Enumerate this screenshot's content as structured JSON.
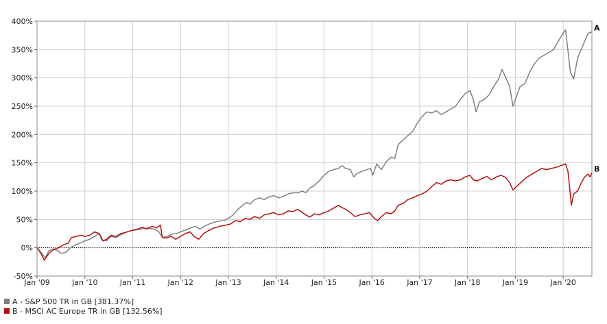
{
  "chart_data": {
    "type": "line",
    "title": "",
    "xlabel": "",
    "ylabel": "",
    "x_tick_labels": [
      "Jan '09",
      "Jan '10",
      "Jan '11",
      "Jan '12",
      "Jan '13",
      "Jan '14",
      "Jan '15",
      "Jan '16",
      "Jan '17",
      "Jan '18",
      "Jan '19",
      "Jan '20"
    ],
    "y_tick_labels": [
      "-50%",
      "0%",
      "50%",
      "100%",
      "150%",
      "200%",
      "250%",
      "300%",
      "350%",
      "400%"
    ],
    "xlim": [
      2009.0,
      2020.6
    ],
    "ylim": [
      -50,
      400
    ],
    "grid": true,
    "zero_line": "dotted",
    "legend_position": "bottom-left",
    "series": [
      {
        "id": "A",
        "name": "A - S&P 500 TR in GB [381.37%]",
        "end_label": "A",
        "color": "#7f7f7f",
        "points": [
          [
            2009.0,
            0
          ],
          [
            2009.08,
            -8
          ],
          [
            2009.17,
            -18
          ],
          [
            2009.25,
            -5
          ],
          [
            2009.35,
            -2
          ],
          [
            2009.45,
            -6
          ],
          [
            2009.5,
            -10
          ],
          [
            2009.6,
            -8
          ],
          [
            2009.7,
            0
          ],
          [
            2009.8,
            5
          ],
          [
            2009.9,
            8
          ],
          [
            2010.0,
            12
          ],
          [
            2010.1,
            15
          ],
          [
            2010.2,
            20
          ],
          [
            2010.3,
            25
          ],
          [
            2010.35,
            14
          ],
          [
            2010.45,
            12
          ],
          [
            2010.55,
            20
          ],
          [
            2010.65,
            18
          ],
          [
            2010.75,
            23
          ],
          [
            2010.85,
            27
          ],
          [
            2010.95,
            30
          ],
          [
            2011.1,
            32
          ],
          [
            2011.3,
            35
          ],
          [
            2011.45,
            33
          ],
          [
            2011.55,
            28
          ],
          [
            2011.62,
            18
          ],
          [
            2011.72,
            20
          ],
          [
            2011.82,
            24
          ],
          [
            2011.92,
            25
          ],
          [
            2012.0,
            28
          ],
          [
            2012.15,
            33
          ],
          [
            2012.3,
            38
          ],
          [
            2012.4,
            33
          ],
          [
            2012.5,
            38
          ],
          [
            2012.6,
            42
          ],
          [
            2012.7,
            45
          ],
          [
            2012.8,
            47
          ],
          [
            2012.92,
            48
          ],
          [
            2013.0,
            52
          ],
          [
            2013.1,
            58
          ],
          [
            2013.2,
            68
          ],
          [
            2013.3,
            75
          ],
          [
            2013.38,
            80
          ],
          [
            2013.45,
            77
          ],
          [
            2013.55,
            85
          ],
          [
            2013.65,
            88
          ],
          [
            2013.75,
            85
          ],
          [
            2013.85,
            90
          ],
          [
            2013.95,
            92
          ],
          [
            2014.05,
            88
          ],
          [
            2014.15,
            91
          ],
          [
            2014.25,
            95
          ],
          [
            2014.35,
            97
          ],
          [
            2014.45,
            97
          ],
          [
            2014.55,
            100
          ],
          [
            2014.62,
            97
          ],
          [
            2014.7,
            105
          ],
          [
            2014.8,
            110
          ],
          [
            2014.9,
            118
          ],
          [
            2015.0,
            128
          ],
          [
            2015.1,
            135
          ],
          [
            2015.2,
            138
          ],
          [
            2015.3,
            140
          ],
          [
            2015.38,
            145
          ],
          [
            2015.45,
            140
          ],
          [
            2015.55,
            138
          ],
          [
            2015.62,
            125
          ],
          [
            2015.7,
            132
          ],
          [
            2015.8,
            135
          ],
          [
            2015.9,
            138
          ],
          [
            2015.97,
            140
          ],
          [
            2016.02,
            128
          ],
          [
            2016.1,
            148
          ],
          [
            2016.2,
            138
          ],
          [
            2016.3,
            152
          ],
          [
            2016.4,
            160
          ],
          [
            2016.48,
            158
          ],
          [
            2016.55,
            182
          ],
          [
            2016.65,
            190
          ],
          [
            2016.75,
            198
          ],
          [
            2016.85,
            205
          ],
          [
            2016.95,
            220
          ],
          [
            2017.05,
            232
          ],
          [
            2017.15,
            240
          ],
          [
            2017.25,
            238
          ],
          [
            2017.35,
            242
          ],
          [
            2017.45,
            235
          ],
          [
            2017.55,
            240
          ],
          [
            2017.65,
            245
          ],
          [
            2017.75,
            250
          ],
          [
            2017.85,
            262
          ],
          [
            2017.95,
            272
          ],
          [
            2018.05,
            278
          ],
          [
            2018.12,
            262
          ],
          [
            2018.18,
            240
          ],
          [
            2018.25,
            258
          ],
          [
            2018.35,
            262
          ],
          [
            2018.45,
            270
          ],
          [
            2018.55,
            285
          ],
          [
            2018.65,
            298
          ],
          [
            2018.72,
            315
          ],
          [
            2018.8,
            300
          ],
          [
            2018.88,
            285
          ],
          [
            2018.95,
            250
          ],
          [
            2019.0,
            262
          ],
          [
            2019.1,
            285
          ],
          [
            2019.2,
            290
          ],
          [
            2019.3,
            310
          ],
          [
            2019.4,
            325
          ],
          [
            2019.5,
            335
          ],
          [
            2019.6,
            340
          ],
          [
            2019.7,
            345
          ],
          [
            2019.8,
            350
          ],
          [
            2019.9,
            365
          ],
          [
            2019.97,
            375
          ],
          [
            2020.05,
            385
          ],
          [
            2020.1,
            348
          ],
          [
            2020.15,
            310
          ],
          [
            2020.22,
            298
          ],
          [
            2020.3,
            335
          ],
          [
            2020.4,
            355
          ],
          [
            2020.5,
            375
          ],
          [
            2020.55,
            380
          ],
          [
            2020.6,
            381
          ]
        ]
      },
      {
        "id": "B",
        "name": "B - MSCI AC Europe TR in GB [132.56%]",
        "end_label": "B",
        "color": "#b50f0f",
        "points": [
          [
            2009.0,
            0
          ],
          [
            2009.08,
            -10
          ],
          [
            2009.15,
            -22
          ],
          [
            2009.25,
            -10
          ],
          [
            2009.35,
            -3
          ],
          [
            2009.45,
            0
          ],
          [
            2009.55,
            5
          ],
          [
            2009.65,
            8
          ],
          [
            2009.72,
            18
          ],
          [
            2009.82,
            20
          ],
          [
            2009.92,
            22
          ],
          [
            2010.0,
            20
          ],
          [
            2010.1,
            22
          ],
          [
            2010.2,
            28
          ],
          [
            2010.3,
            25
          ],
          [
            2010.38,
            12
          ],
          [
            2010.45,
            15
          ],
          [
            2010.55,
            22
          ],
          [
            2010.65,
            20
          ],
          [
            2010.75,
            25
          ],
          [
            2010.85,
            27
          ],
          [
            2010.95,
            30
          ],
          [
            2011.1,
            33
          ],
          [
            2011.2,
            36
          ],
          [
            2011.3,
            33
          ],
          [
            2011.4,
            38
          ],
          [
            2011.5,
            35
          ],
          [
            2011.58,
            40
          ],
          [
            2011.62,
            18
          ],
          [
            2011.7,
            17
          ],
          [
            2011.8,
            20
          ],
          [
            2011.9,
            15
          ],
          [
            2012.0,
            20
          ],
          [
            2012.1,
            25
          ],
          [
            2012.2,
            28
          ],
          [
            2012.28,
            20
          ],
          [
            2012.38,
            15
          ],
          [
            2012.48,
            25
          ],
          [
            2012.58,
            30
          ],
          [
            2012.7,
            35
          ],
          [
            2012.82,
            38
          ],
          [
            2012.95,
            40
          ],
          [
            2013.05,
            42
          ],
          [
            2013.15,
            48
          ],
          [
            2013.25,
            46
          ],
          [
            2013.35,
            52
          ],
          [
            2013.45,
            50
          ],
          [
            2013.55,
            55
          ],
          [
            2013.65,
            52
          ],
          [
            2013.75,
            58
          ],
          [
            2013.85,
            60
          ],
          [
            2013.95,
            62
          ],
          [
            2014.05,
            58
          ],
          [
            2014.15,
            60
          ],
          [
            2014.25,
            65
          ],
          [
            2014.35,
            64
          ],
          [
            2014.45,
            68
          ],
          [
            2014.55,
            62
          ],
          [
            2014.62,
            58
          ],
          [
            2014.7,
            54
          ],
          [
            2014.8,
            60
          ],
          [
            2014.9,
            58
          ],
          [
            2015.0,
            62
          ],
          [
            2015.1,
            65
          ],
          [
            2015.2,
            70
          ],
          [
            2015.3,
            75
          ],
          [
            2015.35,
            72
          ],
          [
            2015.45,
            68
          ],
          [
            2015.55,
            62
          ],
          [
            2015.65,
            55
          ],
          [
            2015.75,
            58
          ],
          [
            2015.85,
            60
          ],
          [
            2015.95,
            62
          ],
          [
            2016.05,
            52
          ],
          [
            2016.12,
            48
          ],
          [
            2016.2,
            55
          ],
          [
            2016.3,
            62
          ],
          [
            2016.4,
            60
          ],
          [
            2016.48,
            65
          ],
          [
            2016.55,
            75
          ],
          [
            2016.65,
            78
          ],
          [
            2016.75,
            85
          ],
          [
            2016.85,
            88
          ],
          [
            2016.95,
            92
          ],
          [
            2017.05,
            95
          ],
          [
            2017.15,
            100
          ],
          [
            2017.25,
            108
          ],
          [
            2017.35,
            115
          ],
          [
            2017.45,
            112
          ],
          [
            2017.55,
            118
          ],
          [
            2017.65,
            120
          ],
          [
            2017.75,
            118
          ],
          [
            2017.85,
            120
          ],
          [
            2017.95,
            125
          ],
          [
            2018.05,
            128
          ],
          [
            2018.12,
            120
          ],
          [
            2018.2,
            118
          ],
          [
            2018.3,
            122
          ],
          [
            2018.4,
            126
          ],
          [
            2018.5,
            120
          ],
          [
            2018.6,
            125
          ],
          [
            2018.7,
            128
          ],
          [
            2018.8,
            124
          ],
          [
            2018.88,
            115
          ],
          [
            2018.95,
            102
          ],
          [
            2019.05,
            110
          ],
          [
            2019.15,
            118
          ],
          [
            2019.25,
            125
          ],
          [
            2019.35,
            130
          ],
          [
            2019.45,
            135
          ],
          [
            2019.55,
            140
          ],
          [
            2019.65,
            138
          ],
          [
            2019.75,
            140
          ],
          [
            2019.85,
            142
          ],
          [
            2019.95,
            145
          ],
          [
            2020.05,
            148
          ],
          [
            2020.1,
            135
          ],
          [
            2020.13,
            110
          ],
          [
            2020.17,
            75
          ],
          [
            2020.22,
            95
          ],
          [
            2020.3,
            100
          ],
          [
            2020.38,
            115
          ],
          [
            2020.45,
            125
          ],
          [
            2020.52,
            130
          ],
          [
            2020.56,
            125
          ],
          [
            2020.6,
            132
          ]
        ]
      }
    ]
  }
}
